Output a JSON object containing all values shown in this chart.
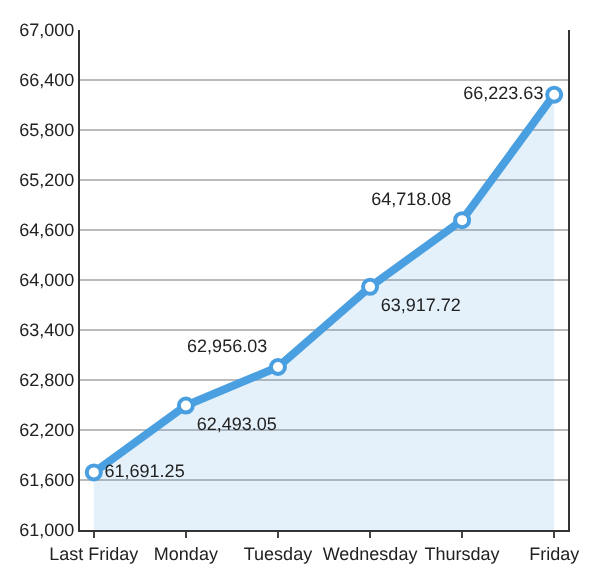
{
  "chart_data": {
    "type": "area",
    "categories": [
      "Last Friday",
      "Monday",
      "Tuesday",
      "Wednesday",
      "Thursday",
      "Friday"
    ],
    "series": [
      {
        "color": "#4a9fe0",
        "values": [
          61691.25,
          62493.05,
          62956.03,
          63917.72,
          64718.08,
          66223.63
        ],
        "value_labels": [
          "61,691.25",
          "62,493.05",
          "62,956.03",
          "63,917.72",
          "64,718.08",
          "66,223.63"
        ]
      }
    ],
    "ylim": [
      61000,
      67000
    ],
    "yticks": [
      {
        "value": 61000,
        "label": "61,000"
      },
      {
        "value": 61600,
        "label": "61,600"
      },
      {
        "value": 62200,
        "label": "62,200"
      },
      {
        "value": 62800,
        "label": "62,800"
      },
      {
        "value": 63400,
        "label": "63,400"
      },
      {
        "value": 64000,
        "label": "64,000"
      },
      {
        "value": 64600,
        "label": "64,600"
      },
      {
        "value": 65200,
        "label": "65,200"
      },
      {
        "value": 65800,
        "label": "65,800"
      },
      {
        "value": 66400,
        "label": "66,400"
      },
      {
        "value": 67000,
        "label": "67,000"
      }
    ],
    "grid": "y",
    "marker": "circle"
  }
}
